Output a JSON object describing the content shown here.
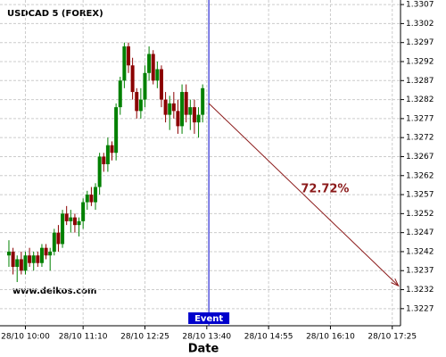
{
  "chart_data": {
    "type": "candlestick",
    "title": "USDCAD 5 (FOREX)",
    "watermark": "www.delkos.com",
    "xlabel": "Date",
    "event_label": "Event",
    "annotation": "72.72%",
    "open": [
      1.3241,
      1.3242,
      1.3238,
      1.324,
      1.3237,
      1.3241,
      1.3239,
      1.3241,
      1.3239,
      1.3243,
      1.3241,
      1.3242,
      1.3247,
      1.3244,
      1.3252,
      1.325,
      1.3251,
      1.3249,
      1.325,
      1.3255,
      1.3257,
      1.3255,
      1.3259,
      1.3267,
      1.3265,
      1.327,
      1.3268,
      1.328,
      1.3287,
      1.3296,
      1.3291,
      1.3284,
      1.3279,
      1.3282,
      1.3289,
      1.3294,
      1.3287,
      1.329,
      1.3282,
      1.3278,
      1.3281,
      1.3279,
      1.3275,
      1.3284,
      1.3278,
      1.328,
      1.3276,
      1.3278
    ],
    "high": [
      1.3245,
      1.3243,
      1.3241,
      1.3242,
      1.3242,
      1.3243,
      1.3242,
      1.3242,
      1.3244,
      1.3244,
      1.3243,
      1.3248,
      1.3249,
      1.3253,
      1.3254,
      1.3253,
      1.3252,
      1.3251,
      1.3256,
      1.3258,
      1.3259,
      1.326,
      1.3268,
      1.3268,
      1.3272,
      1.3271,
      1.3281,
      1.3288,
      1.3297,
      1.3297,
      1.3293,
      1.3285,
      1.3285,
      1.3291,
      1.3296,
      1.3295,
      1.3292,
      1.3291,
      1.3284,
      1.3283,
      1.3284,
      1.3282,
      1.3286,
      1.3286,
      1.3282,
      1.3282,
      1.328,
      1.3286
    ],
    "low": [
      1.3238,
      1.3236,
      1.3234,
      1.3236,
      1.3236,
      1.3238,
      1.3237,
      1.3238,
      1.3238,
      1.324,
      1.3237,
      1.3241,
      1.3242,
      1.3243,
      1.3249,
      1.3247,
      1.3247,
      1.3246,
      1.3248,
      1.3253,
      1.3254,
      1.3253,
      1.3257,
      1.3263,
      1.3263,
      1.3266,
      1.3266,
      1.3278,
      1.3285,
      1.3289,
      1.3282,
      1.3277,
      1.3277,
      1.328,
      1.3287,
      1.3286,
      1.3285,
      1.328,
      1.3276,
      1.3274,
      1.3277,
      1.3273,
      1.3273,
      1.3276,
      1.3274,
      1.3273,
      1.3272,
      1.3276
    ],
    "close": [
      1.3242,
      1.3238,
      1.324,
      1.3237,
      1.3241,
      1.3239,
      1.3241,
      1.3239,
      1.3243,
      1.3241,
      1.3242,
      1.3247,
      1.3244,
      1.3252,
      1.325,
      1.3251,
      1.3249,
      1.325,
      1.3255,
      1.3257,
      1.3255,
      1.3259,
      1.3267,
      1.3265,
      1.327,
      1.3268,
      1.328,
      1.3287,
      1.3296,
      1.3291,
      1.3284,
      1.3279,
      1.3282,
      1.3289,
      1.3294,
      1.3287,
      1.329,
      1.3282,
      1.3278,
      1.3281,
      1.3279,
      1.3275,
      1.3284,
      1.3278,
      1.328,
      1.3276,
      1.3278,
      1.3285
    ],
    "up_color": "#008000",
    "down_color": "#8b0000",
    "event_x": 48.5,
    "event_color": "#0000cc",
    "forecast": {
      "x": [
        48.5,
        94.5
      ],
      "y": [
        1.3281,
        1.3233
      ],
      "color": "#8b1a1a"
    },
    "xlim": [
      -2.16,
      95
    ],
    "ylim": [
      1.32225,
      1.33082
    ],
    "xticks": [
      {
        "value": 4,
        "label": "28/10 10:00"
      },
      {
        "value": 18,
        "label": "28/10 11:10"
      },
      {
        "value": 33,
        "label": "28/10 12:25"
      },
      {
        "value": 48,
        "label": "28/10 13:40"
      },
      {
        "value": 63,
        "label": "28/10 14:55"
      },
      {
        "value": 78,
        "label": "28/10 16:10"
      },
      {
        "value": 93,
        "label": "28/10 17:25"
      }
    ],
    "yticks": [
      1.3227,
      1.3232,
      1.3237,
      1.3242,
      1.3247,
      1.3252,
      1.3257,
      1.3262,
      1.3267,
      1.3272,
      1.3277,
      1.3282,
      1.3287,
      1.3292,
      1.3297,
      1.3302,
      1.3307
    ],
    "grid": true
  }
}
